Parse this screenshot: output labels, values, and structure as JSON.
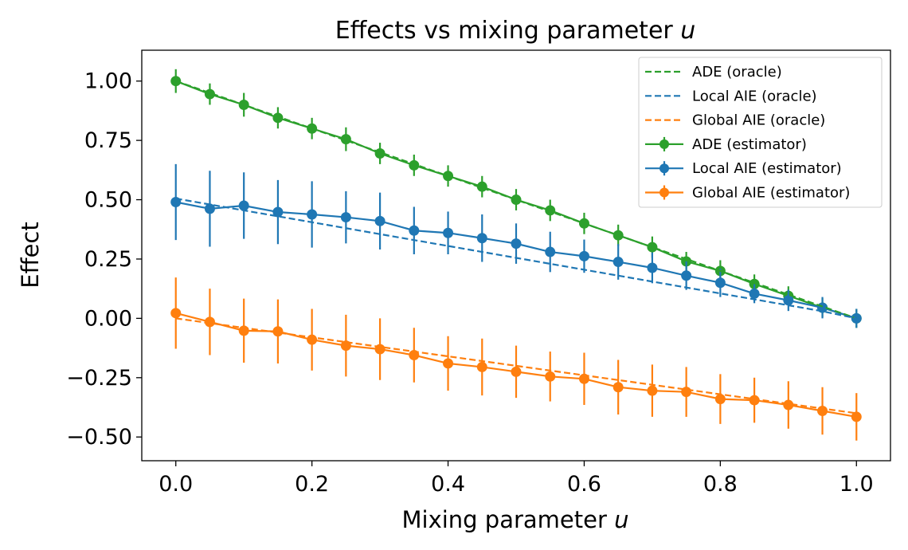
{
  "chart_data": {
    "type": "line",
    "title": "Effects vs mixing parameter",
    "title_var": "u",
    "xlabel": "Mixing parameter",
    "xlabel_var": "u",
    "ylabel": "Effect",
    "xlim": [
      -0.05,
      1.05
    ],
    "ylim": [
      -0.6,
      1.13
    ],
    "x_ticks": [
      0.0,
      0.2,
      0.4,
      0.6,
      0.8,
      1.0
    ],
    "x_tick_labels": [
      "0.0",
      "0.2",
      "0.4",
      "0.6",
      "0.8",
      "1.0"
    ],
    "y_ticks": [
      1.0,
      0.75,
      0.5,
      0.25,
      0.0,
      -0.25,
      -0.5
    ],
    "y_tick_labels": [
      "1.00",
      "0.75",
      "0.50",
      "0.25",
      "0.00",
      "−0.25",
      "−0.50"
    ],
    "grid": false,
    "legend_position": "top-right",
    "x": [
      0.0,
      0.05,
      0.1,
      0.15,
      0.2,
      0.25,
      0.3,
      0.35,
      0.4,
      0.45,
      0.5,
      0.55,
      0.6,
      0.65,
      0.7,
      0.75,
      0.8,
      0.85,
      0.9,
      0.95,
      1.0
    ],
    "series": [
      {
        "name": "ADE (oracle)",
        "kind": "dashed",
        "color": "#2ca02c",
        "values": [
          1.0,
          0.95,
          0.9,
          0.85,
          0.8,
          0.75,
          0.7,
          0.65,
          0.6,
          0.55,
          0.5,
          0.45,
          0.4,
          0.35,
          0.3,
          0.25,
          0.2,
          0.15,
          0.1,
          0.05,
          0.0
        ]
      },
      {
        "name": "Local AIE (oracle)",
        "kind": "dashed",
        "color": "#1f77b4",
        "values": [
          0.505,
          0.48,
          0.455,
          0.43,
          0.405,
          0.38,
          0.355,
          0.33,
          0.305,
          0.28,
          0.255,
          0.23,
          0.205,
          0.18,
          0.155,
          0.13,
          0.105,
          0.08,
          0.055,
          0.03,
          0.0
        ]
      },
      {
        "name": "Global AIE (oracle)",
        "kind": "dashed",
        "color": "#ff7f0e",
        "values": [
          0.0,
          -0.02,
          -0.04,
          -0.06,
          -0.08,
          -0.1,
          -0.12,
          -0.14,
          -0.16,
          -0.18,
          -0.2,
          -0.22,
          -0.24,
          -0.26,
          -0.28,
          -0.3,
          -0.32,
          -0.34,
          -0.36,
          -0.38,
          -0.4
        ]
      },
      {
        "name": "ADE (estimator)",
        "kind": "errorbar",
        "color": "#2ca02c",
        "values": [
          1.0,
          0.945,
          0.9,
          0.845,
          0.8,
          0.755,
          0.695,
          0.645,
          0.6,
          0.555,
          0.5,
          0.455,
          0.4,
          0.35,
          0.3,
          0.24,
          0.2,
          0.145,
          0.095,
          0.045,
          0.0
        ],
        "errors": [
          0.05,
          0.045,
          0.05,
          0.045,
          0.045,
          0.05,
          0.045,
          0.045,
          0.045,
          0.045,
          0.045,
          0.045,
          0.045,
          0.045,
          0.045,
          0.04,
          0.045,
          0.04,
          0.04,
          0.04,
          0.04
        ]
      },
      {
        "name": "Local AIE (estimator)",
        "kind": "errorbar",
        "color": "#1f77b4",
        "values": [
          0.49,
          0.462,
          0.475,
          0.448,
          0.438,
          0.426,
          0.41,
          0.37,
          0.36,
          0.338,
          0.315,
          0.28,
          0.262,
          0.238,
          0.213,
          0.18,
          0.15,
          0.104,
          0.076,
          0.045,
          0.0
        ],
        "errors": [
          0.16,
          0.16,
          0.14,
          0.135,
          0.14,
          0.11,
          0.12,
          0.1,
          0.09,
          0.1,
          0.085,
          0.085,
          0.07,
          0.075,
          0.065,
          0.06,
          0.06,
          0.04,
          0.045,
          0.045,
          0.04
        ]
      },
      {
        "name": "Global AIE (estimator)",
        "kind": "errorbar",
        "color": "#ff7f0e",
        "values": [
          0.022,
          -0.015,
          -0.052,
          -0.055,
          -0.09,
          -0.115,
          -0.13,
          -0.155,
          -0.19,
          -0.205,
          -0.225,
          -0.245,
          -0.255,
          -0.29,
          -0.305,
          -0.31,
          -0.34,
          -0.345,
          -0.365,
          -0.39,
          -0.415
        ],
        "errors": [
          0.15,
          0.14,
          0.135,
          0.135,
          0.13,
          0.13,
          0.13,
          0.115,
          0.115,
          0.12,
          0.11,
          0.105,
          0.11,
          0.115,
          0.11,
          0.105,
          0.105,
          0.095,
          0.1,
          0.1,
          0.1
        ]
      }
    ]
  }
}
